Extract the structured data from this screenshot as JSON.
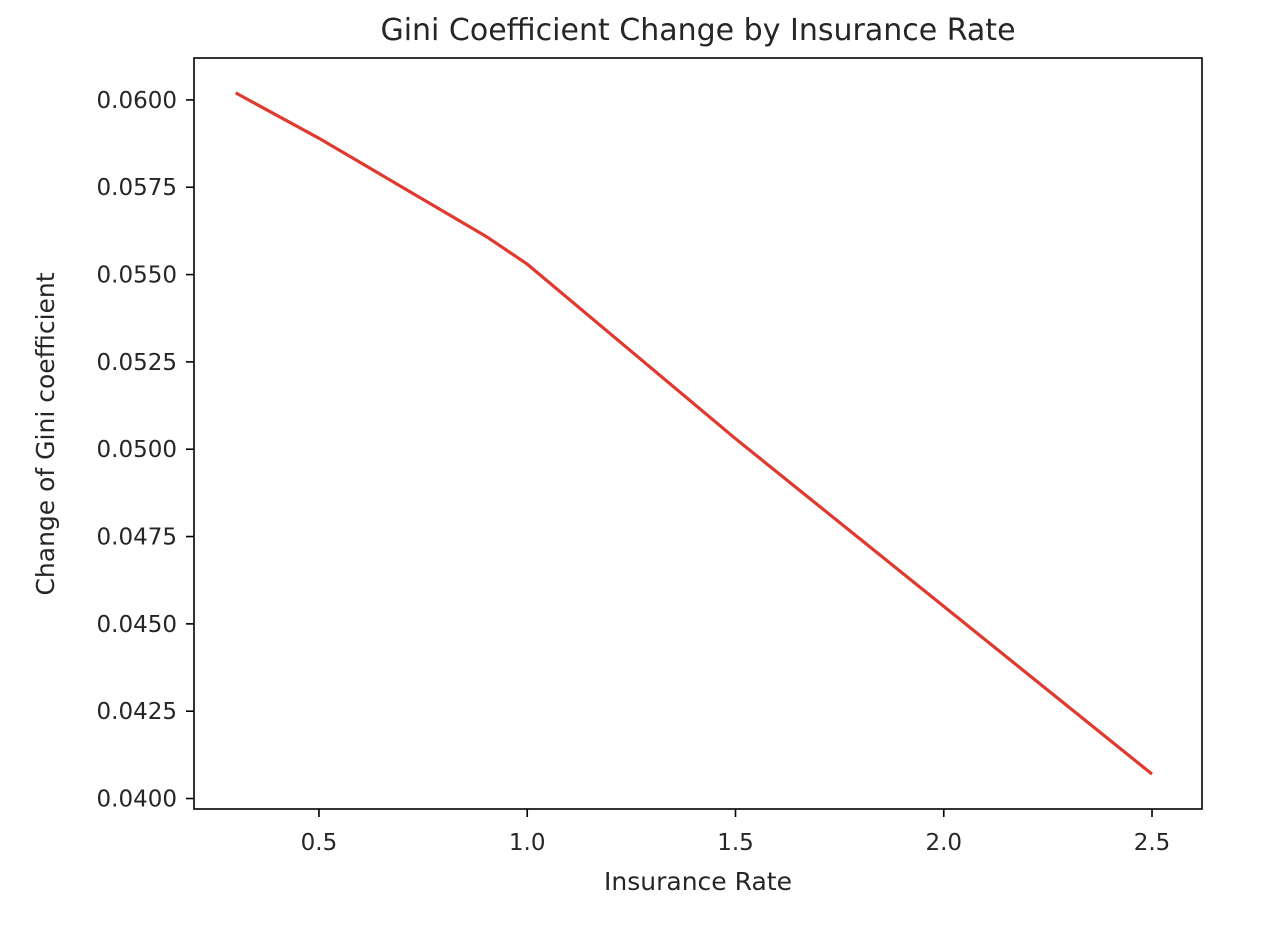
{
  "chart_data": {
    "type": "line",
    "title": "Gini Coefficient Change by Insurance Rate",
    "xlabel": "Insurance Rate",
    "ylabel": "Change of Gini coefficient",
    "xlim": [
      0.2,
      2.62
    ],
    "ylim": [
      0.0397,
      0.0612
    ],
    "xticks": [
      0.5,
      1.0,
      1.5,
      2.0,
      2.5
    ],
    "xtick_labels": [
      "0.5",
      "1.0",
      "1.5",
      "2.0",
      "2.5"
    ],
    "yticks": [
      0.04,
      0.0425,
      0.045,
      0.0475,
      0.05,
      0.0525,
      0.055,
      0.0575,
      0.06
    ],
    "ytick_labels": [
      "0.0400",
      "0.0425",
      "0.0450",
      "0.0475",
      "0.0500",
      "0.0525",
      "0.0550",
      "0.0575",
      "0.0600"
    ],
    "grid": false,
    "series": [
      {
        "color": "#e03a2f",
        "x": [
          0.3,
          0.5,
          0.7,
          0.9,
          1.0,
          1.5,
          2.0,
          2.5
        ],
        "y": [
          0.0602,
          0.0589,
          0.0575,
          0.0561,
          0.0553,
          0.0503,
          0.0455,
          0.0407
        ]
      }
    ]
  }
}
